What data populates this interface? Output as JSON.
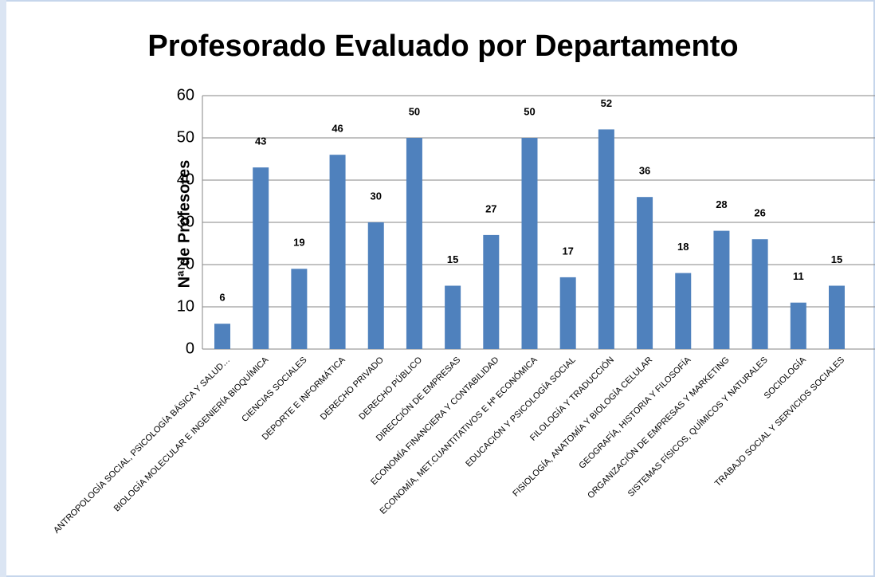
{
  "chart_data": {
    "type": "bar",
    "title": "Profesorado Evaluado por Departamento",
    "y_label": "Nª de Profesores",
    "categories": [
      "ANTROPOLOGÍA SOCIAL, PSICOLOGÍA BÁSICA Y SALUD…",
      "BIOLOGÍA MOLECULAR E INGENIERÍA BIOQUÍMICA",
      "CIENCIAS SOCIALES",
      "DEPORTE E INFORMÁTICA",
      "DERECHO PRIVADO",
      "DERECHO PÚBLICO",
      "DIRECCIÓN DE EMPRESAS",
      "ECONOMÍA FINANCIERA Y CONTABILIDAD",
      "ECONOMÍA, MET.CUANTITATIVOS E Hª ECONÓMICA",
      "EDUCACIÓN Y PSICOLOGÍA SOCIAL",
      "FILOLOGÍA Y TRADUCCIÓN",
      "FISIOLOGÍA, ANATOMÍA Y BIOLOGÍA CELULAR",
      "GEOGRAFÍA, HISTORIA Y FILOSOFÍA",
      "ORGANIZACIÓN DE EMPRESAS Y MARKETING",
      "SISTEMAS FÍSICOS, QUÍMICOS Y NATURALES",
      "SOCIOLOGÍA",
      "TRABAJO SOCIAL Y SERVICIOS SOCIALES"
    ],
    "values": [
      6,
      43,
      19,
      46,
      30,
      50,
      15,
      27,
      50,
      17,
      52,
      36,
      18,
      28,
      26,
      11,
      15
    ],
    "color": "#4f81bd",
    "ylim": [
      0,
      60
    ],
    "yticks": [
      0,
      10,
      20,
      30,
      40,
      50,
      60
    ],
    "grid": true,
    "data_labels": true
  }
}
